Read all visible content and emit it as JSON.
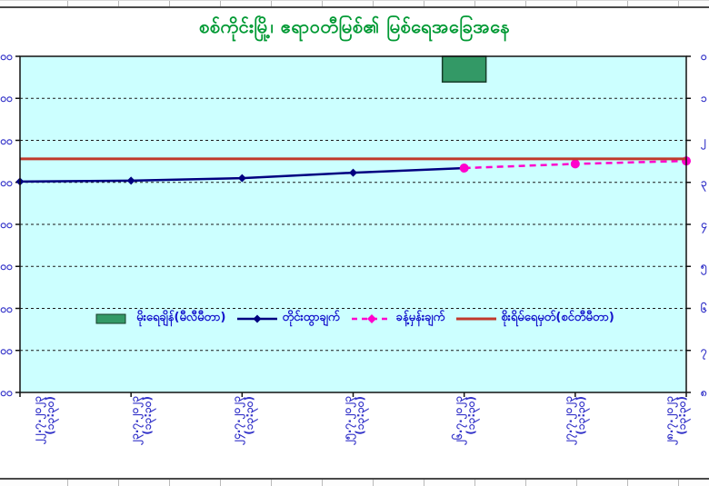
{
  "title": "စစ်ကိုင်းမြို့၊ ဧရာဝတီမြစ်၏ မြစ်ရေအခြေအနေ",
  "colors": {
    "title": "#009933",
    "plot_background": "#CCFFFF",
    "axis_label_text": "#3232C8",
    "legend_text": "#1414CC",
    "observed_line": "#000080",
    "forecast_line": "#FF00CC",
    "danger_line": "#C0392B",
    "rainfall_bar": "#339966",
    "rainfall_bar_border": "#173D2A",
    "grid_line": "#1a1a1a",
    "plot_frame": "#111111"
  },
  "chart_data": {
    "type": "line",
    "title": "စစ်ကိုင်းမြို့၊ ဧရာဝတီမြစ်၏ မြစ်ရေအခြေအနေ",
    "grid": "horizontal-dashed",
    "x_categories": [
      {
        "date": "၂၂.၇.၂၀၂၃",
        "time": "(၁၃:၃၀)"
      },
      {
        "date": "၂၃.၇.၂၀၂၃",
        "time": "(၁၃:၃၀)"
      },
      {
        "date": "၂၄.၇.၂၀၂၃",
        "time": "(၁၃:၃၀)"
      },
      {
        "date": "၂၅.၇.၂၀၂၃",
        "time": "(၁၃:၃၀)"
      },
      {
        "date": "၂၆.၇.၂၀၂၃",
        "time": "(၁၃:၃၀)"
      },
      {
        "date": "၂၇.၇.၂၀၂၃",
        "time": "(၁၃:၃၀)"
      },
      {
        "date": "၂၈.၇.၂၀၂၃",
        "time": "(၁၃:၃၀)"
      }
    ],
    "left_axis": {
      "cropped_at_image_edge": true,
      "visible_tick_labels": [
        "၀၀",
        "၀၀",
        "၀၀",
        "၀၀",
        "၀၀",
        "၀၀",
        "၀၀",
        "၀၀",
        "၀၀"
      ]
    },
    "right_axis": {
      "cropped_at_image_edge": true,
      "visible_tick_labels": [
        "၀",
        "၁",
        "၂",
        "၃",
        "၄",
        "၅",
        "၆",
        "၇",
        "၈"
      ]
    },
    "series": [
      {
        "name": "မိုးရေချိန်(မီလီမီတာ)",
        "type": "bar-from-top",
        "color": "#339966",
        "bars": [
          {
            "x_index": 4,
            "from_grid_units": 0,
            "to_grid_units": 0.61
          }
        ]
      },
      {
        "name": "တိုင်းထွာချက်",
        "type": "line",
        "marker": "diamond",
        "color": "#000080",
        "points": [
          {
            "x_index": 0,
            "grid_units_from_top": 2.98
          },
          {
            "x_index": 1,
            "grid_units_from_top": 2.96
          },
          {
            "x_index": 2,
            "grid_units_from_top": 2.9
          },
          {
            "x_index": 3,
            "grid_units_from_top": 2.77
          },
          {
            "x_index": 4,
            "grid_units_from_top": 2.66
          }
        ]
      },
      {
        "name": "ခန့်မှန်းချက်",
        "type": "dashed-line",
        "marker": "circle",
        "color": "#FF00CC",
        "points": [
          {
            "x_index": 4,
            "grid_units_from_top": 2.66
          },
          {
            "x_index": 5,
            "grid_units_from_top": 2.56
          },
          {
            "x_index": 6,
            "grid_units_from_top": 2.49
          }
        ]
      },
      {
        "name": "စိုးရိမ်ရေမှတ်(စင်တီမီတာ)",
        "type": "hline",
        "color": "#C0392B",
        "grid_units_from_top": 2.44
      }
    ]
  },
  "legend": {
    "items": [
      {
        "label": "မိုးရေချိန်(မီလီမီတာ)",
        "swatch": "bar",
        "color": "#339966"
      },
      {
        "label": "တိုင်းထွာချက်",
        "swatch": "line-diamond",
        "color": "#000080"
      },
      {
        "label": "ခန့်မှန်းချက်",
        "swatch": "dashed-diamond",
        "color": "#FF00CC"
      },
      {
        "label": "စိုးရိမ်ရေမှတ်(စင်တီမီတာ)",
        "swatch": "line",
        "color": "#C0392B"
      }
    ]
  }
}
